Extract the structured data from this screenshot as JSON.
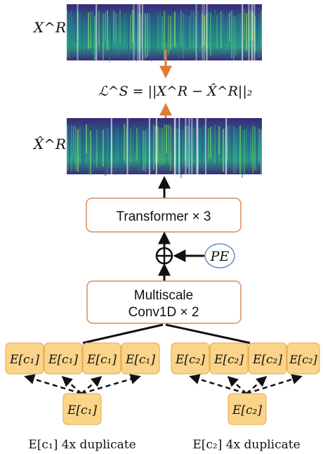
{
  "labels": {
    "xr": "X^R",
    "xr_hat": "X̂^R",
    "loss": "ℒ^S = ||X^R − X̂^R||₂",
    "transformer": "Transformer × 3",
    "pe": "PE",
    "multiscale_line1": "Multiscale",
    "multiscale_line2": "Conv1D × 2"
  },
  "embeddings": {
    "left_token": "E[c₁]",
    "right_token": "E[c₂]",
    "left_caption": "E[c₁] 4x duplicate",
    "right_caption": "E[c₂] 4x duplicate"
  },
  "colors": {
    "spectrogram_bg": "#3b2a7a",
    "spectrogram_mid": "#1f8a8a",
    "spectrogram_hi": "#7fd45a",
    "box_border": "#d98c5f",
    "token_fill": "#fbd48a",
    "token_border": "#e0a84a",
    "pe_border": "#5b8fc9",
    "loss_arrow": "#e07b39"
  }
}
